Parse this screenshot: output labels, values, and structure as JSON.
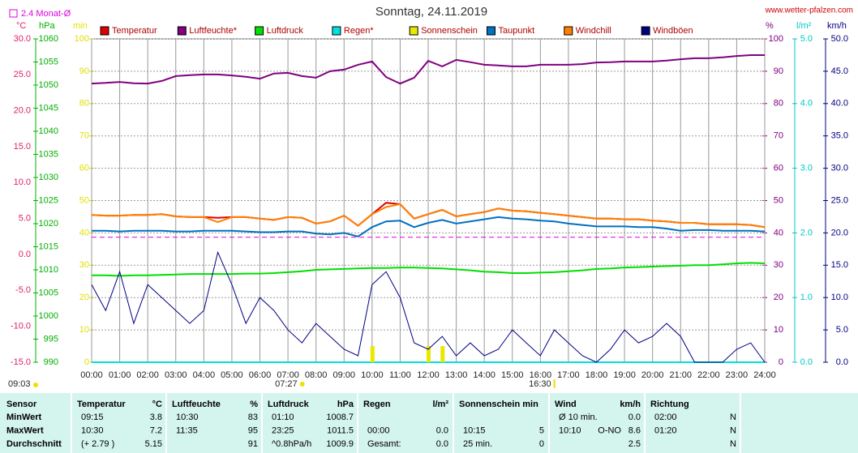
{
  "chart_data": {
    "type": "line",
    "title": "Sonntag, 24.11.2019",
    "source": "www.wetter-pfalzen.com",
    "mean_line": {
      "label": "2.4 Monat-Ø",
      "value": 2.4,
      "axis": 0,
      "color": "#e000e0"
    },
    "sunrise": "07:27",
    "sunset": "16:30",
    "daylength": "09:03",
    "grid": true,
    "axes": [
      {
        "unit": "°C",
        "color": "#e0206a",
        "lim": [
          -15,
          30
        ],
        "ticks": [
          {
            "value": -15,
            "label": "-15.0"
          },
          {
            "value": -10,
            "label": "-10.0"
          },
          {
            "value": -5,
            "label": "-5.0"
          },
          {
            "value": 0,
            "label": "0.0"
          },
          {
            "value": 5,
            "label": "5.0"
          },
          {
            "value": 10,
            "label": "10.0"
          },
          {
            "value": 15,
            "label": "15.0"
          },
          {
            "value": 20,
            "label": "20.0"
          },
          {
            "value": 25,
            "label": "25.0"
          },
          {
            "value": 30,
            "label": "30.0"
          }
        ]
      },
      {
        "unit": "hPa",
        "color": "#00b000",
        "lim": [
          990,
          1060
        ],
        "ticks": [
          990,
          995,
          1000,
          1005,
          1010,
          1015,
          1020,
          1025,
          1030,
          1035,
          1040,
          1045,
          1050,
          1055,
          1060
        ]
      },
      {
        "unit": "min",
        "color": "#e0e000",
        "lim": [
          0,
          100
        ],
        "ticks": [
          0,
          10,
          20,
          30,
          40,
          50,
          60,
          70,
          80,
          90,
          100
        ]
      },
      {
        "unit": "%",
        "color": "#800080",
        "lim": [
          0,
          100
        ],
        "ticks": [
          0,
          10,
          20,
          30,
          40,
          50,
          60,
          70,
          80,
          90,
          100
        ]
      },
      {
        "unit": "l/m²",
        "color": "#00c8c8",
        "lim": [
          0,
          5
        ],
        "ticks": [
          {
            "value": 0,
            "label": "0.0"
          },
          {
            "value": 1,
            "label": "1.0"
          },
          {
            "value": 2,
            "label": "2.0"
          },
          {
            "value": 3,
            "label": "3.0"
          },
          {
            "value": 4,
            "label": "4.0"
          },
          {
            "value": 5,
            "label": "5.0"
          }
        ]
      },
      {
        "unit": "km/h",
        "color": "#000080",
        "lim": [
          0,
          50
        ],
        "ticks": [
          {
            "value": 0,
            "label": "0.0"
          },
          {
            "value": 5,
            "label": "5.0"
          },
          {
            "value": 10,
            "label": "10.0"
          },
          {
            "value": 15,
            "label": "15.0"
          },
          {
            "value": 20,
            "label": "20.0"
          },
          {
            "value": 25,
            "label": "25.0"
          },
          {
            "value": 30,
            "label": "30.0"
          },
          {
            "value": 35,
            "label": "35.0"
          },
          {
            "value": 40,
            "label": "40.0"
          },
          {
            "value": 45,
            "label": "45.0"
          },
          {
            "value": 50,
            "label": "50.0"
          }
        ]
      }
    ],
    "xticks": [
      "00:00",
      "01:00",
      "02:00",
      "03:00",
      "04:00",
      "05:00",
      "06:00",
      "07:00",
      "08:00",
      "09:00",
      "10:00",
      "11:00",
      "12:00",
      "13:00",
      "14:00",
      "15:00",
      "16:00",
      "17:00",
      "18:00",
      "19:00",
      "20:00",
      "21:00",
      "22:00",
      "23:00",
      "24:00"
    ],
    "x": [
      "00:00",
      "00:30",
      "01:00",
      "01:30",
      "02:00",
      "02:30",
      "03:00",
      "03:30",
      "04:00",
      "04:30",
      "05:00",
      "05:30",
      "06:00",
      "06:30",
      "07:00",
      "07:30",
      "08:00",
      "08:30",
      "09:00",
      "09:30",
      "10:00",
      "10:30",
      "11:00",
      "11:30",
      "12:00",
      "12:30",
      "13:00",
      "13:30",
      "14:00",
      "14:30",
      "15:00",
      "15:30",
      "16:00",
      "16:30",
      "17:00",
      "17:30",
      "18:00",
      "18:30",
      "19:00",
      "19:30",
      "20:00",
      "20:30",
      "21:00",
      "21:30",
      "22:00",
      "22:30",
      "23:00",
      "23:30",
      "24:00"
    ],
    "series": [
      {
        "name": "Temperatur",
        "color": "#e00000",
        "axis": 0,
        "values": [
          5.5,
          5.4,
          5.4,
          5.5,
          5.5,
          5.6,
          5.3,
          5.2,
          5.2,
          5.1,
          5.2,
          5.2,
          5.0,
          4.8,
          5.2,
          5.1,
          4.3,
          4.6,
          5.4,
          4.0,
          5.6,
          7.2,
          7.0,
          5.0,
          5.6,
          6.2,
          5.3,
          5.6,
          5.9,
          6.4,
          6.1,
          6.0,
          5.8,
          5.6,
          5.4,
          5.2,
          5.0,
          5.0,
          4.9,
          4.9,
          4.7,
          4.6,
          4.4,
          4.4,
          4.2,
          4.2,
          4.2,
          4.1,
          3.8
        ]
      },
      {
        "name": "Luftfeuchte*",
        "color": "#800080",
        "axis": 3,
        "values": [
          86.2,
          86.4,
          86.7,
          86.3,
          86.2,
          87,
          88.5,
          88.8,
          89,
          89,
          88.7,
          88.3,
          87.7,
          89.3,
          89.5,
          88.5,
          88,
          90,
          90.5,
          92,
          93,
          88.2,
          86.2,
          88,
          93.2,
          91.5,
          93.5,
          92.8,
          92,
          91.8,
          91.5,
          91.5,
          92,
          92,
          92,
          92.2,
          92.7,
          92.8,
          93,
          93,
          93,
          93.3,
          93.7,
          94,
          94,
          94.3,
          94.7,
          95,
          95
        ]
      },
      {
        "name": "Luftdruck",
        "color": "#00e000",
        "axis": 1,
        "values": [
          1008.8,
          1008.8,
          1008.7,
          1008.8,
          1008.8,
          1008.9,
          1009.0,
          1009.1,
          1009.1,
          1009.1,
          1009.1,
          1009.2,
          1009.2,
          1009.3,
          1009.5,
          1009.7,
          1010.0,
          1010.1,
          1010.2,
          1010.3,
          1010.4,
          1010.4,
          1010.5,
          1010.5,
          1010.4,
          1010.3,
          1010.1,
          1009.9,
          1009.6,
          1009.5,
          1009.3,
          1009.3,
          1009.4,
          1009.5,
          1009.7,
          1009.9,
          1010.2,
          1010.3,
          1010.5,
          1010.6,
          1010.7,
          1010.8,
          1010.9,
          1011.0,
          1011.0,
          1011.2,
          1011.4,
          1011.5,
          1011.4
        ]
      },
      {
        "name": "Regen*",
        "color": "#00e0e0",
        "axis": 4,
        "values": [
          0,
          0,
          0,
          0,
          0,
          0,
          0,
          0,
          0,
          0,
          0,
          0,
          0,
          0,
          0,
          0,
          0,
          0,
          0,
          0,
          0,
          0,
          0,
          0,
          0,
          0,
          0,
          0,
          0,
          0,
          0,
          0,
          0,
          0,
          0,
          0,
          0,
          0,
          0,
          0,
          0,
          0,
          0,
          0,
          0,
          0,
          0,
          0,
          0
        ]
      },
      {
        "name": "Sonnenschein",
        "color": "#e8e800",
        "axis": 2,
        "type": "bar",
        "values": [
          0,
          0,
          0,
          0,
          0,
          0,
          0,
          0,
          0,
          0,
          0,
          0,
          0,
          0,
          0,
          0,
          0,
          0,
          0,
          0,
          5,
          0,
          0,
          0,
          5,
          5,
          0,
          0,
          0,
          0,
          0,
          0,
          0,
          0,
          0,
          0,
          0,
          0,
          0,
          0,
          0,
          0,
          0,
          0,
          0,
          0,
          0,
          0,
          0
        ]
      },
      {
        "name": "Taupunkt",
        "color": "#0070c0",
        "axis": 0,
        "values": [
          3.3,
          3.3,
          3.2,
          3.3,
          3.3,
          3.3,
          3.2,
          3.2,
          3.3,
          3.3,
          3.3,
          3.2,
          3.1,
          3.1,
          3.2,
          3.2,
          2.9,
          2.8,
          3.0,
          2.5,
          3.8,
          4.6,
          4.7,
          3.8,
          4.4,
          4.8,
          4.3,
          4.6,
          4.9,
          5.2,
          5.0,
          4.9,
          4.7,
          4.6,
          4.3,
          4.1,
          3.9,
          3.9,
          3.9,
          3.8,
          3.8,
          3.6,
          3.3,
          3.4,
          3.4,
          3.3,
          3.3,
          3.3,
          3.2
        ]
      },
      {
        "name": "Windchill",
        "color": "#ff8000",
        "axis": 0,
        "values": [
          5.5,
          5.4,
          5.4,
          5.5,
          5.5,
          5.6,
          5.3,
          5.2,
          5.2,
          4.5,
          5.2,
          5.2,
          5.0,
          4.8,
          5.2,
          5.1,
          4.3,
          4.6,
          5.4,
          4.0,
          5.6,
          6.6,
          7.0,
          5.0,
          5.6,
          6.2,
          5.3,
          5.6,
          5.9,
          6.4,
          6.1,
          6.0,
          5.8,
          5.6,
          5.4,
          5.2,
          5.0,
          5.0,
          4.9,
          4.9,
          4.7,
          4.6,
          4.4,
          4.4,
          4.2,
          4.2,
          4.2,
          4.1,
          3.8
        ]
      },
      {
        "name": "Windböen",
        "color": "#000080",
        "axis": 5,
        "values": [
          12,
          8,
          14,
          6,
          12,
          10,
          8,
          6,
          8,
          17,
          12,
          6,
          10,
          8,
          5,
          3,
          6,
          4,
          2,
          1,
          12,
          14,
          10,
          3,
          2,
          4,
          1,
          3,
          1,
          2,
          5,
          3,
          1,
          5,
          3,
          1,
          0,
          2,
          5,
          3,
          4,
          6,
          4,
          0,
          0,
          0,
          2,
          3,
          0
        ]
      }
    ]
  },
  "table": {
    "columns": [
      {
        "title": "Sensor"
      },
      {
        "title": "Temperatur",
        "unit": "°C"
      },
      {
        "title": "Luftfeuchte",
        "unit": "%"
      },
      {
        "title": "Luftdruck",
        "unit": "hPa"
      },
      {
        "title": "Regen",
        "unit": "l/m²"
      },
      {
        "title": "Sonnenschein min"
      },
      {
        "title": "Wind",
        "unit": "km/h"
      },
      {
        "title": "Richtung"
      }
    ],
    "rows": [
      {
        "label": "MinWert",
        "cells": [
          {
            "l": "09:15",
            "r": "3.8"
          },
          {
            "l": "10:30",
            "r": "83"
          },
          {
            "l": "01:10",
            "r": "1008.7"
          },
          {},
          {},
          {
            "l": "Ø 10 min.",
            "r": "0.0"
          },
          {
            "l": "02:00",
            "r": "N"
          }
        ]
      },
      {
        "label": "MaxWert",
        "cells": [
          {
            "l": "10:30",
            "r": "7.2"
          },
          {
            "l": "11:35",
            "r": "95"
          },
          {
            "l": "23:25",
            "r": "1011.5"
          },
          {
            "l": "00:00",
            "r": "0.0"
          },
          {
            "l": "10:15",
            "r": "5"
          },
          {
            "l": "10:10",
            "m": "O-NO",
            "r": "8.6"
          },
          {
            "l": "01:20",
            "r": "N"
          }
        ]
      },
      {
        "label": "Durchschnitt",
        "cells": [
          {
            "l": "(+ 2.79 )",
            "r": "5.15"
          },
          {
            "r": "91"
          },
          {
            "l": "^0.8hPa/h",
            "r": "1009.9"
          },
          {
            "l": "Gesamt:",
            "r": "0.0"
          },
          {
            "l": "25 min.",
            "r": "0"
          },
          {
            "r": "2.5"
          },
          {
            "r": "N"
          }
        ]
      }
    ]
  }
}
